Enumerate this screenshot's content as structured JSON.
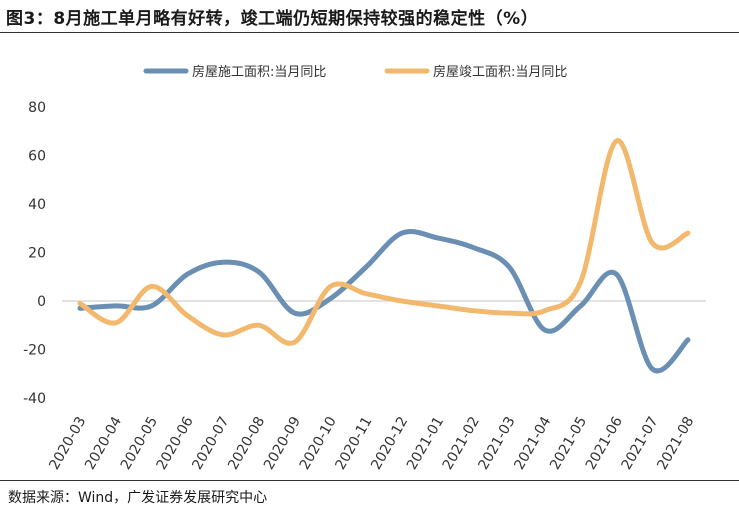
{
  "title": "图3：8月施工单月略有好转，竣工端仍短期保持较强的稳定性（%）",
  "source": "数据来源：Wind，广发证券发展研究中心",
  "colors": {
    "series1": "#6a8fb3",
    "series2": "#f2b96e",
    "axis": "#d9d9d9"
  },
  "chart_data": {
    "type": "line",
    "title": "图3：8月施工单月略有好转，竣工端仍短期保持较强的稳定性（%）",
    "x": [
      "2020-03",
      "2020-04",
      "2020-05",
      "2020-06",
      "2020-07",
      "2020-08",
      "2020-09",
      "2020-10",
      "2020-11",
      "2020-12",
      "2021-01",
      "2021-02",
      "2021-03",
      "2021-04",
      "2021-05",
      "2021-06",
      "2021-07",
      "2021-08"
    ],
    "ylim": [
      -40,
      80
    ],
    "yticks": [
      80,
      60,
      40,
      20,
      0,
      -20,
      -40
    ],
    "legend_position": "top",
    "series": [
      {
        "name": "房屋施工面积:当月同比",
        "values": [
          -3,
          -2,
          -2,
          11,
          16,
          12,
          -5,
          1,
          14,
          28,
          26,
          22,
          14,
          -12,
          -2,
          11,
          -28,
          -16
        ]
      },
      {
        "name": "房屋竣工面积:当月同比",
        "values": [
          -1,
          -9,
          6,
          -6,
          -14,
          -10,
          -17,
          6,
          3,
          0,
          -2,
          -4,
          -5,
          -4,
          8,
          66,
          24,
          28
        ]
      }
    ]
  }
}
